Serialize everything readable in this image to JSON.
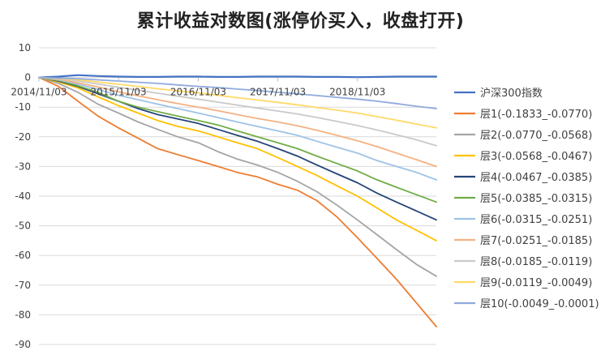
{
  "chart_data": {
    "type": "line",
    "title": "累计收益对数图(涨停价买入，收盘打开)",
    "xlabel": "",
    "ylabel": "",
    "ylim": [
      -90,
      10
    ],
    "yticks": [
      10,
      0,
      -10,
      -20,
      -30,
      -40,
      -50,
      -60,
      -70,
      -80,
      -90
    ],
    "x_tick_labels": [
      "2014/11/03",
      "2015/11/03",
      "2016/11/03",
      "2017/11/03",
      "2018/11/03"
    ],
    "x_tick_dates": [
      "2014-11-03",
      "2015-11-03",
      "2016-11-03",
      "2017-11-03",
      "2018-11-03"
    ],
    "x_range": [
      "2014-11-03",
      "2019-10-31"
    ],
    "grid": true,
    "legend_position": "right",
    "x": [
      "2014-11-03",
      "2015-02-01",
      "2015-05-01",
      "2015-08-01",
      "2015-11-03",
      "2016-02-01",
      "2016-05-01",
      "2016-08-01",
      "2016-11-03",
      "2017-02-01",
      "2017-05-01",
      "2017-08-01",
      "2017-11-03",
      "2018-02-01",
      "2018-05-01",
      "2018-08-01",
      "2018-11-03",
      "2019-02-01",
      "2019-05-01",
      "2019-08-01",
      "2019-10-31"
    ],
    "series": [
      {
        "name": "沪深300指数",
        "color": "#4472C4",
        "values": [
          0,
          0.3,
          0.8,
          0.5,
          0.3,
          0.2,
          0.2,
          0.3,
          0.3,
          0.2,
          0.2,
          0.3,
          0.3,
          0.3,
          0.2,
          0.2,
          0.1,
          0.2,
          0.3,
          0.3,
          0.3
        ]
      },
      {
        "name": "层1(-0.1833_-0.0770)",
        "color": "#ED7D31",
        "values": [
          0,
          -3,
          -8,
          -13,
          -17,
          -20.5,
          -24,
          -26,
          -28,
          -30,
          -32,
          -33.5,
          -36,
          -38,
          -41.5,
          -47,
          -54,
          -61,
          -68,
          -76,
          -84
        ]
      },
      {
        "name": "层2(-0.0770_-0.0568)",
        "color": "#A5A5A5",
        "values": [
          0,
          -2,
          -5,
          -9,
          -12,
          -15,
          -17.5,
          -20,
          -22,
          -25,
          -27.5,
          -29.5,
          -32,
          -35,
          -38.5,
          -43,
          -48,
          -53,
          -58,
          -63,
          -67
        ]
      },
      {
        "name": "层3(-0.0568_-0.0467)",
        "color": "#FFC000",
        "values": [
          0,
          -1.5,
          -3.5,
          -6.5,
          -9.5,
          -12,
          -14.5,
          -16.5,
          -18,
          -20,
          -22,
          -24,
          -27,
          -30,
          -33,
          -36.5,
          -40,
          -44,
          -48,
          -51.5,
          -55
        ]
      },
      {
        "name": "层4(-0.0467_-0.0385)",
        "color": "#264478",
        "values": [
          0,
          -1.2,
          -3,
          -5.5,
          -8,
          -10.5,
          -12.5,
          -14,
          -15.5,
          -17.5,
          -19.5,
          -21.5,
          -24,
          -26.5,
          -29.5,
          -32.5,
          -35.5,
          -39,
          -42,
          -45,
          -48
        ]
      },
      {
        "name": "层5(-0.0385_-0.0315)",
        "color": "#70AD47",
        "values": [
          0,
          -1,
          -2.8,
          -5,
          -8,
          -10,
          -11.5,
          -13,
          -14.5,
          -16,
          -18,
          -20,
          -22,
          -24,
          -26.5,
          -29,
          -31.5,
          -34.5,
          -37,
          -39.5,
          -42
        ]
      },
      {
        "name": "层6(-0.0315_-0.0251)",
        "color": "#9DC3E6",
        "values": [
          0,
          -0.8,
          -2.2,
          -4,
          -6,
          -7.5,
          -9,
          -10.5,
          -12,
          -13.5,
          -15,
          -16.5,
          -18,
          -19.5,
          -21.5,
          -23.5,
          -25.5,
          -28,
          -30,
          -32,
          -34.5
        ]
      },
      {
        "name": "层7(-0.0251_-0.0185)",
        "color": "#F4B183",
        "values": [
          0,
          -0.6,
          -1.8,
          -3.2,
          -4.8,
          -6.2,
          -7.5,
          -8.8,
          -10,
          -11.2,
          -12.5,
          -13.8,
          -15,
          -16.3,
          -17.8,
          -19.5,
          -21.3,
          -23.3,
          -25.5,
          -27.7,
          -30
        ]
      },
      {
        "name": "层8(-0.0185_-0.0119)",
        "color": "#C9C9C9",
        "values": [
          0,
          -0.4,
          -1.2,
          -2.2,
          -3.3,
          -4.3,
          -5.3,
          -6.3,
          -7.3,
          -8.3,
          -9.3,
          -10.3,
          -11.3,
          -12.3,
          -13.5,
          -14.8,
          -16.2,
          -17.7,
          -19.3,
          -21,
          -23
        ]
      },
      {
        "name": "层9(-0.0119_-0.0049)",
        "color": "#FFD966",
        "values": [
          0,
          -0.3,
          -0.8,
          -1.5,
          -2.3,
          -3,
          -3.8,
          -4.5,
          -5.2,
          -6,
          -6.8,
          -7.6,
          -8.4,
          -9.2,
          -10.1,
          -11,
          -12,
          -13.2,
          -14.4,
          -15.7,
          -17
        ]
      },
      {
        "name": "层10(-0.0049_-0.0001)",
        "color": "#8FAADC",
        "values": [
          0,
          -0.2,
          -0.4,
          -0.8,
          -1.2,
          -1.6,
          -2,
          -2.5,
          -3,
          -3.4,
          -3.9,
          -4.4,
          -5,
          -5.5,
          -6.1,
          -6.7,
          -7.3,
          -8,
          -8.8,
          -9.7,
          -10.5
        ]
      }
    ]
  }
}
